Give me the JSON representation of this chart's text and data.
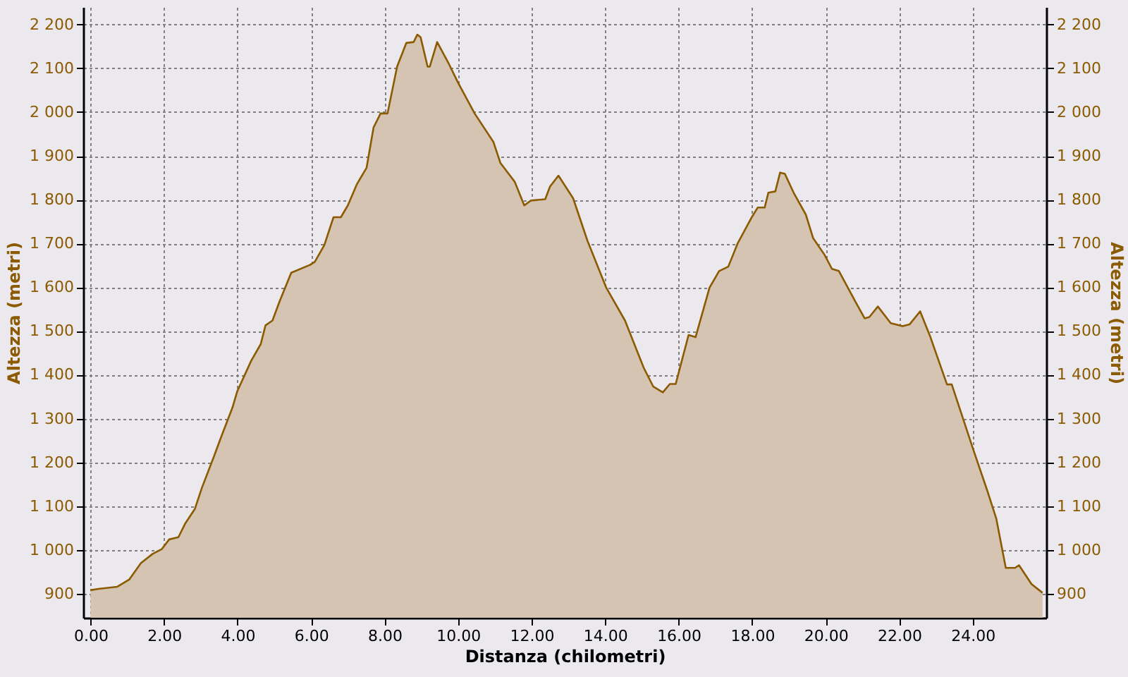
{
  "chart_data": {
    "type": "area",
    "xlabel": "Distanza (chilometri)",
    "ylabel": "Altezza (metri)",
    "y2label": "Altezza (metri)",
    "x": [
      0,
      0.22,
      0.73,
      1.05,
      1.37,
      1.69,
      1.94,
      2.14,
      2.39,
      2.58,
      2.84,
      3.03,
      3.35,
      3.54,
      3.86,
      3.99,
      4.37,
      4.63,
      4.76,
      4.95,
      5.14,
      5.46,
      5.97,
      6.1,
      6.36,
      6.61,
      6.81,
      7.0,
      7.25,
      7.51,
      7.7,
      7.89,
      8.08,
      8.34,
      8.59,
      8.79,
      8.89,
      8.98,
      9.17,
      9.23,
      9.43,
      9.75,
      10.0,
      10.45,
      10.96,
      11.15,
      11.54,
      11.8,
      11.98,
      12.37,
      12.5,
      12.73,
      13.13,
      13.52,
      14.03,
      14.54,
      15.05,
      15.31,
      15.57,
      15.76,
      15.92,
      16.27,
      16.46,
      16.84,
      17.1,
      17.35,
      17.61,
      17.99,
      18.15,
      18.34,
      18.44,
      18.63,
      18.76,
      18.89,
      19.14,
      19.46,
      19.66,
      19.97,
      20.17,
      20.36,
      20.81,
      21.06,
      21.19,
      21.42,
      21.77,
      22.09,
      22.28,
      22.57,
      22.85,
      23.3,
      23.43,
      24.0,
      24.39,
      24.64,
      24.9,
      25.15,
      25.26,
      25.6,
      25.9
    ],
    "series": [
      {
        "color": "#8c5a00",
        "values": [
          908,
          911,
          916,
          932,
          970,
          991,
          1002,
          1024,
          1029,
          1061,
          1094,
          1142,
          1212,
          1255,
          1325,
          1362,
          1432,
          1470,
          1513,
          1524,
          1567,
          1633,
          1651,
          1658,
          1696,
          1760,
          1760,
          1787,
          1836,
          1873,
          1965,
          1997,
          1997,
          2104,
          2158,
          2160,
          2177,
          2171,
          2104,
          2104,
          2160,
          2110,
          2067,
          1997,
          1932,
          1884,
          1841,
          1787,
          1798,
          1801,
          1830,
          1855,
          1803,
          1706,
          1599,
          1524,
          1416,
          1373,
          1360,
          1379,
          1379,
          1491,
          1486,
          1599,
          1637,
          1647,
          1701,
          1760,
          1782,
          1782,
          1816,
          1819,
          1862,
          1859,
          1814,
          1766,
          1712,
          1674,
          1642,
          1637,
          1567,
          1529,
          1532,
          1556,
          1518,
          1511,
          1515,
          1545,
          1486,
          1378,
          1378,
          1233,
          1137,
          1072,
          959,
          959,
          965,
          922,
          902
        ]
      }
    ],
    "xlim": [
      -0.2,
      26.0
    ],
    "ylim": [
      845,
      2240
    ],
    "y2lim": [
      845,
      2240
    ],
    "xticks": [
      {
        "value": 0,
        "label": "0.00"
      },
      {
        "value": 2,
        "label": "2.00"
      },
      {
        "value": 4,
        "label": "4.00"
      },
      {
        "value": 6,
        "label": "6.00"
      },
      {
        "value": 8,
        "label": "8.00"
      },
      {
        "value": 10,
        "label": "10.00"
      },
      {
        "value": 12,
        "label": "12.00"
      },
      {
        "value": 14,
        "label": "14.00"
      },
      {
        "value": 16,
        "label": "16.00"
      },
      {
        "value": 18,
        "label": "18.00"
      },
      {
        "value": 20,
        "label": "20.00"
      },
      {
        "value": 22,
        "label": "22.00"
      },
      {
        "value": 24,
        "label": "24.00"
      }
    ],
    "yticks": [
      {
        "value": 900,
        "label": "900"
      },
      {
        "value": 1000,
        "label": "1 000"
      },
      {
        "value": 1100,
        "label": "1 100"
      },
      {
        "value": 1200,
        "label": "1 200"
      },
      {
        "value": 1300,
        "label": "1 300"
      },
      {
        "value": 1400,
        "label": "1 400"
      },
      {
        "value": 1500,
        "label": "1 500"
      },
      {
        "value": 1600,
        "label": "1 600"
      },
      {
        "value": 1700,
        "label": "1 700"
      },
      {
        "value": 1800,
        "label": "1 800"
      },
      {
        "value": 1900,
        "label": "1 900"
      },
      {
        "value": 2000,
        "label": "2 000"
      },
      {
        "value": 2100,
        "label": "2 100"
      },
      {
        "value": 2200,
        "label": "2 200"
      }
    ],
    "y2ticks": [
      {
        "value": 900,
        "label": "900"
      },
      {
        "value": 1000,
        "label": "1 000"
      },
      {
        "value": 1100,
        "label": "1 100"
      },
      {
        "value": 1200,
        "label": "1 200"
      },
      {
        "value": 1300,
        "label": "1 300"
      },
      {
        "value": 1400,
        "label": "1 400"
      },
      {
        "value": 1500,
        "label": "1 500"
      },
      {
        "value": 1600,
        "label": "1 600"
      },
      {
        "value": 1700,
        "label": "1 700"
      },
      {
        "value": 1800,
        "label": "1 800"
      },
      {
        "value": 1900,
        "label": "1 900"
      },
      {
        "value": 2000,
        "label": "2 000"
      },
      {
        "value": 2100,
        "label": "2 100"
      },
      {
        "value": 2200,
        "label": "2 200"
      }
    ],
    "grid": true,
    "marker": "none",
    "line_style": "solid"
  }
}
